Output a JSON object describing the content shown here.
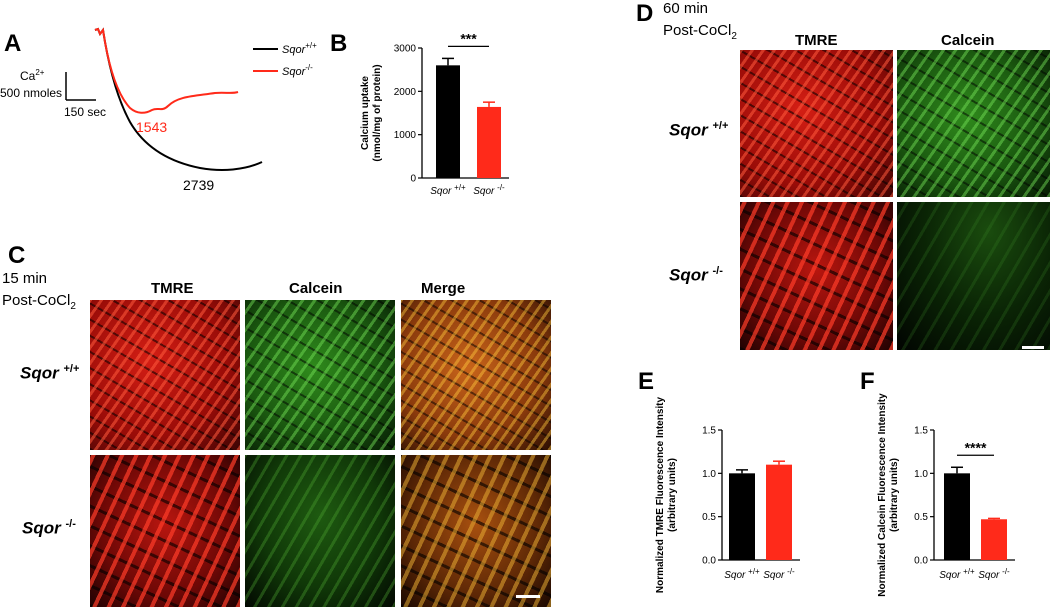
{
  "panels": {
    "A": "A",
    "B": "B",
    "C": "C",
    "D": "D",
    "E": "E",
    "F": "F"
  },
  "panel_a": {
    "scale_ca_label": "Ca",
    "scale_ca_sup": "2+",
    "scale_nmol": "500 nmoles",
    "scale_time": "150 sec",
    "legend_wt_name": "Sqor",
    "legend_wt_sup": "+/+",
    "legend_ko_name": "Sqor",
    "legend_ko_sup": "-/-",
    "value_ko": "1543",
    "value_wt": "2739",
    "color_wt": "#000000",
    "color_ko": "#ff2a1a"
  },
  "panel_c": {
    "caption_line1": "15 min",
    "caption_line2": "Post-CoCl",
    "caption_sub": "2",
    "col_tmre": "TMRE",
    "col_calcein": "Calcein",
    "col_merge": "Merge",
    "row_wt_name": "Sqor",
    "row_wt_sup": "+/+",
    "row_ko_name": "Sqor",
    "row_ko_sup": "-/-"
  },
  "panel_d": {
    "caption_line1": "60 min",
    "caption_line2": "Post-CoCl",
    "caption_sub": "2",
    "col_tmre": "TMRE",
    "col_calcein": "Calcein",
    "row_wt_name": "Sqor",
    "row_wt_sup": "+/+",
    "row_ko_name": "Sqor",
    "row_ko_sup": "-/-"
  },
  "chart_data": [
    {
      "id": "B",
      "type": "bar",
      "categories": [
        "Sqor +/+",
        "Sqor -/-"
      ],
      "cat_names": [
        "Sqor",
        "Sqor"
      ],
      "cat_sups": [
        "+/+",
        "-/-"
      ],
      "values": [
        2600,
        1640
      ],
      "errors": [
        160,
        110
      ],
      "colors": [
        "#000000",
        "#ff2a1a"
      ],
      "ylabel_line1": "Calcium uptake",
      "ylabel_line2": "(nmol/mg of protein)",
      "ylim": [
        0,
        3000
      ],
      "yticks": [
        "0",
        "1000",
        "2000",
        "3000"
      ],
      "significance": "***"
    },
    {
      "id": "E",
      "type": "bar",
      "categories": [
        "Sqor +/+",
        "Sqor -/-"
      ],
      "cat_names": [
        "Sqor",
        "Sqor"
      ],
      "cat_sups": [
        "+/+",
        "-/-"
      ],
      "values": [
        1.0,
        1.1
      ],
      "errors": [
        0.04,
        0.04
      ],
      "colors": [
        "#000000",
        "#ff2a1a"
      ],
      "ylabel_line1": "Normalized TMRE Fluorescence Intensity",
      "ylabel_line2": "(arbitrary units)",
      "ylim": [
        0,
        1.5
      ],
      "yticks": [
        "0.0",
        "0.5",
        "1.0",
        "1.5"
      ],
      "significance": ""
    },
    {
      "id": "F",
      "type": "bar",
      "categories": [
        "Sqor +/+",
        "Sqor -/-"
      ],
      "cat_names": [
        "Sqor",
        "Sqor"
      ],
      "cat_sups": [
        "+/+",
        "-/-"
      ],
      "values": [
        1.0,
        0.47
      ],
      "errors": [
        0.07,
        0.01
      ],
      "colors": [
        "#000000",
        "#ff2a1a"
      ],
      "ylabel_line1": "Normalized Calcein Fluorescence Intensity",
      "ylabel_line2": "(arbitrary units)",
      "ylim": [
        0,
        1.5
      ],
      "yticks": [
        "0.0",
        "0.5",
        "1.0",
        "1.5"
      ],
      "significance": "****"
    }
  ]
}
